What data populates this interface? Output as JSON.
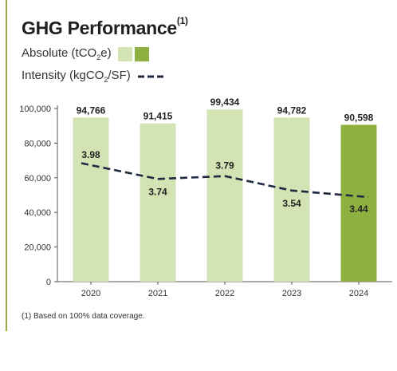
{
  "title": {
    "text": "GHG Performance",
    "sup": "(1)"
  },
  "legend": {
    "absolute": {
      "pre": "Absolute (tCO",
      "sub": "2",
      "post": "e)"
    },
    "intensity": {
      "pre": "Intensity (kgCO",
      "sub": "2",
      "post": "/SF)"
    }
  },
  "colors": {
    "bar_light": "#d4e3b4",
    "bar_dark": "#8db040",
    "line": "#1f2a40",
    "rule": "#8db040"
  },
  "footnote": "(1)  Based on 100% data coverage.",
  "chart_data": {
    "type": "bar",
    "categories": [
      "2020",
      "2021",
      "2022",
      "2023",
      "2024"
    ],
    "series": [
      {
        "name": "Absolute (tCO2e)",
        "values": [
          94766,
          91415,
          99434,
          94782,
          90598
        ],
        "labels": [
          "94,766",
          "91,415",
          "99,434",
          "94,782",
          "90,598"
        ]
      },
      {
        "name": "Intensity (kgCO2/SF)",
        "type": "line",
        "style": "dashed",
        "values": [
          3.98,
          3.74,
          3.79,
          3.54,
          3.44
        ],
        "labels": [
          "3.98",
          "3.74",
          "3.79",
          "3.54",
          "3.44"
        ]
      }
    ],
    "highlight_category": "2024",
    "ylim": [
      0,
      100000
    ],
    "yticks": [
      0,
      20000,
      40000,
      60000,
      80000,
      100000
    ],
    "ytick_labels": [
      "0",
      "20,000",
      "40,000",
      "60,000",
      "80,000",
      "100,000"
    ],
    "grid": false
  }
}
